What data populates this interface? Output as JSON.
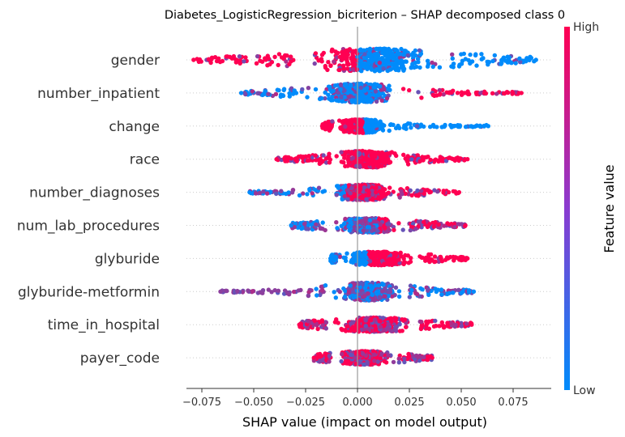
{
  "chart_data": {
    "type": "scatter",
    "subtype": "shap-beeswarm",
    "title": "Diabetes_LogisticRegression_bicriterion – SHAP decomposed class 0",
    "xlabel": "SHAP value (impact on model output)",
    "xlim": [
      -0.085,
      0.093
    ],
    "x_ticks": [
      "−0.075",
      "−0.050",
      "−0.025",
      "0.000",
      "0.025",
      "0.050",
      "0.075"
    ],
    "x_tick_values": [
      -0.075,
      -0.05,
      -0.025,
      0.0,
      0.025,
      0.05,
      0.075
    ],
    "grid": false,
    "colorbar": {
      "label": "Feature value",
      "high": "High",
      "low": "Low",
      "low_color": "#008bfb",
      "high_color": "#ff0052"
    },
    "features": [
      {
        "name": "gender",
        "min": -0.079,
        "max": 0.086,
        "core": [
          -0.03,
          0.045
        ],
        "split": 0.0,
        "neg": "high",
        "pos": "low",
        "purple": 0.15,
        "spread": 1.0
      },
      {
        "name": "number_inpatient",
        "min": -0.056,
        "max": 0.079,
        "core": [
          -0.022,
          0.022
        ],
        "split": 0.02,
        "neg": "low",
        "pos": "high",
        "purple": 0.3,
        "spread": 0.8
      },
      {
        "name": "change",
        "min": -0.017,
        "max": 0.063,
        "core": [
          -0.012,
          0.015
        ],
        "split": 0.003,
        "neg": "high",
        "pos": "low",
        "purple": 0.05,
        "spread": 0.55
      },
      {
        "name": "race",
        "min": -0.039,
        "max": 0.053,
        "core": [
          -0.013,
          0.022
        ],
        "split": 0.0,
        "neg": "high",
        "pos": "high",
        "purple": 0.2,
        "spread": 0.7
      },
      {
        "name": "number_diagnoses",
        "min": -0.052,
        "max": 0.049,
        "core": [
          -0.015,
          0.02
        ],
        "split": -0.005,
        "neg": "low",
        "pos": "high",
        "purple": 0.4,
        "spread": 0.65
      },
      {
        "name": "num_lab_procedures",
        "min": -0.032,
        "max": 0.052,
        "core": [
          -0.015,
          0.025
        ],
        "split": 0.01,
        "neg": "low",
        "pos": "high",
        "purple": 0.55,
        "spread": 0.6
      },
      {
        "name": "glyburide",
        "min": -0.013,
        "max": 0.053,
        "core": [
          -0.01,
          0.03
        ],
        "split": 0.005,
        "neg": "low",
        "pos": "high",
        "purple": 0.1,
        "spread": 0.55
      },
      {
        "name": "glyburide-metformin",
        "min": -0.066,
        "max": 0.056,
        "core": [
          -0.015,
          0.025
        ],
        "split": -0.02,
        "neg": "purple",
        "pos": "low",
        "purple": 0.6,
        "spread": 0.75
      },
      {
        "name": "time_in_hospital",
        "min": -0.028,
        "max": 0.055,
        "core": [
          -0.015,
          0.03
        ],
        "split": 0.0,
        "neg": "high",
        "pos": "high",
        "purple": 0.5,
        "spread": 0.6
      },
      {
        "name": "payer_code",
        "min": -0.021,
        "max": 0.036,
        "core": [
          -0.013,
          0.02
        ],
        "split": 0.0,
        "neg": "high",
        "pos": "high",
        "purple": 0.5,
        "spread": 0.55
      }
    ]
  }
}
